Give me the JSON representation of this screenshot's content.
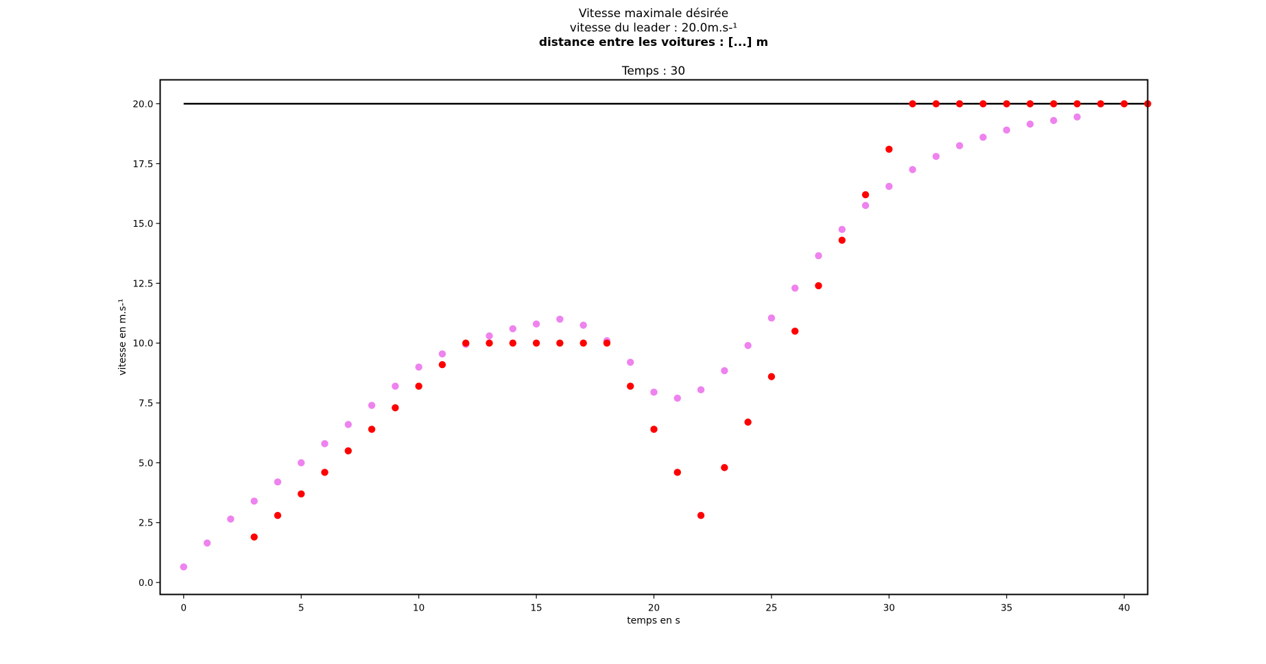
{
  "chart_data": {
    "type": "scatter",
    "title": "Vitesse maximale désirée",
    "subtitle": "vitesse du leader : 20.0m.s-¹",
    "overlay_title": "distance entre les voitures : [...] m",
    "axes_title": "Temps : 30",
    "xlabel": "temps en s",
    "ylabel": "vitesse en m.s-¹",
    "xlim": [
      -1,
      41
    ],
    "ylim": [
      -0.5,
      21
    ],
    "xticks": [
      0,
      5,
      10,
      15,
      20,
      25,
      30,
      35,
      40
    ],
    "yticks": [
      0.0,
      2.5,
      5.0,
      7.5,
      10.0,
      12.5,
      15.0,
      17.5,
      20.0
    ],
    "grid": false,
    "reference_line": {
      "y": 20.0,
      "x_start": 0,
      "x_end": 41,
      "color": "#000000"
    },
    "series": [
      {
        "color": "#ee82ee",
        "x": [
          0,
          1,
          2,
          3,
          4,
          5,
          6,
          7,
          8,
          9,
          10,
          11,
          12,
          13,
          14,
          15,
          16,
          17,
          18,
          19,
          20,
          21,
          22,
          23,
          24,
          25,
          26,
          27,
          28,
          29,
          30,
          31,
          32,
          33,
          34,
          35,
          36,
          37,
          38
        ],
        "y": [
          0.65,
          1.65,
          2.65,
          3.4,
          4.2,
          5.0,
          5.8,
          6.6,
          7.4,
          8.2,
          9.0,
          9.55,
          9.95,
          10.3,
          10.6,
          10.8,
          11.0,
          10.75,
          10.1,
          9.2,
          7.95,
          7.7,
          8.05,
          8.85,
          9.9,
          11.05,
          12.3,
          13.65,
          14.75,
          15.75,
          16.55,
          17.25,
          17.8,
          18.25,
          18.6,
          18.9,
          19.15,
          19.3,
          19.45
        ]
      },
      {
        "color": "#ff0000",
        "x": [
          3,
          4,
          5,
          6,
          7,
          8,
          9,
          10,
          11,
          12,
          13,
          14,
          15,
          16,
          17,
          18,
          19,
          20,
          21,
          22,
          23,
          24,
          25,
          26,
          27,
          28,
          29,
          30,
          31,
          32,
          33,
          34,
          35,
          36,
          37,
          38,
          39,
          40,
          41
        ],
        "y": [
          1.9,
          2.8,
          3.7,
          4.6,
          5.5,
          6.4,
          7.3,
          8.2,
          9.1,
          10.0,
          10.0,
          10.0,
          10.0,
          10.0,
          10.0,
          10.0,
          8.2,
          6.4,
          4.6,
          2.8,
          4.8,
          6.7,
          8.6,
          10.5,
          12.4,
          14.3,
          16.2,
          18.1,
          20.0,
          20.0,
          20.0,
          20.0,
          20.0,
          20.0,
          20.0,
          20.0,
          20.0,
          20.0,
          20.0
        ]
      }
    ]
  }
}
